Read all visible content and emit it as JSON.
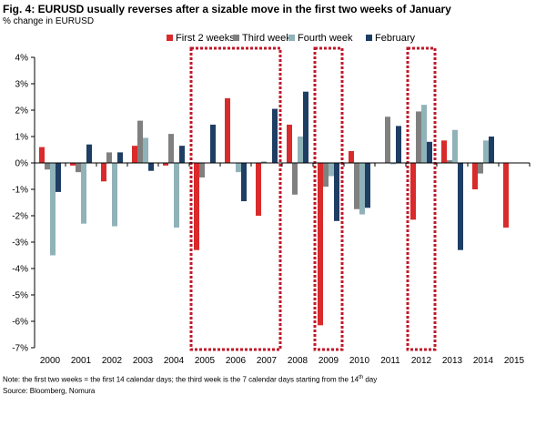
{
  "title": "Fig. 4: EURUSD usually reverses after a sizable move in the first two weeks of January",
  "subtitle": "% change in EURUSD",
  "note_main": "Note: the first two weeks = the first 14 calendar days; the third week is the 7 calendar days starting from the 14",
  "note_sup": "th",
  "note_end": " day",
  "source": "Source: Bloomberg, Nomura",
  "colors": {
    "first_2_weeks": "#d92b2b",
    "third_week": "#808080",
    "fourth_week": "#8fb3b8",
    "february": "#1f3e64",
    "highlight_box": "#c0182a"
  },
  "chart_data": {
    "type": "bar",
    "categories": [
      "2000",
      "2001",
      "2002",
      "2003",
      "2004",
      "2005",
      "2006",
      "2007",
      "2008",
      "2009",
      "2010",
      "2011",
      "2012",
      "2013",
      "2014",
      "2015"
    ],
    "series": [
      {
        "name": "First 2 weeks",
        "values": [
          0.6,
          -0.1,
          -0.7,
          0.65,
          -0.1,
          -3.3,
          2.45,
          -2.0,
          1.45,
          -6.15,
          0.45,
          null,
          -2.15,
          0.85,
          -1.0,
          -2.45
        ]
      },
      {
        "name": "Third week",
        "values": [
          -0.25,
          -0.35,
          0.4,
          1.6,
          1.1,
          -0.55,
          null,
          0.05,
          -1.2,
          -0.9,
          -1.75,
          1.75,
          1.95,
          0.1,
          -0.4,
          null
        ]
      },
      {
        "name": "Fourth week",
        "values": [
          -3.5,
          -2.3,
          -2.4,
          0.95,
          -2.45,
          null,
          -0.35,
          null,
          1.0,
          -0.5,
          -1.95,
          -0.05,
          2.2,
          1.25,
          0.85,
          null
        ]
      },
      {
        "name": "February",
        "values": [
          -1.1,
          0.7,
          0.4,
          -0.3,
          0.65,
          1.45,
          -1.45,
          2.05,
          2.7,
          -2.2,
          -1.7,
          1.4,
          0.8,
          -3.3,
          1.0,
          null
        ]
      }
    ],
    "ylim": [
      -7,
      4
    ],
    "yticks": [
      "4%",
      "3%",
      "2%",
      "1%",
      "0%",
      "-1%",
      "-2%",
      "-3%",
      "-4%",
      "-5%",
      "-6%",
      "-7%"
    ],
    "legend_position": "top",
    "highlighted_groups": [
      [
        "2005",
        "2007"
      ],
      [
        "2009",
        "2009"
      ],
      [
        "2012",
        "2012"
      ]
    ],
    "grid": false
  }
}
